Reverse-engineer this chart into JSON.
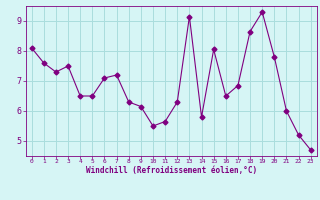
{
  "x": [
    0,
    1,
    2,
    3,
    4,
    5,
    6,
    7,
    8,
    9,
    10,
    11,
    12,
    13,
    14,
    15,
    16,
    17,
    18,
    19,
    20,
    21,
    22,
    23
  ],
  "y": [
    8.1,
    7.6,
    7.3,
    7.5,
    6.5,
    6.5,
    7.1,
    7.2,
    6.3,
    6.15,
    5.5,
    5.65,
    6.3,
    9.15,
    5.8,
    8.05,
    6.5,
    6.85,
    8.65,
    9.3,
    7.8,
    6.0,
    5.2,
    4.7
  ],
  "line_color": "#800080",
  "marker": "D",
  "marker_size": 2.5,
  "bg_color": "#d6f5f5",
  "grid_color": "#aadddd",
  "xlabel": "Windchill (Refroidissement éolien,°C)",
  "xlabel_color": "#800080",
  "tick_color": "#800080",
  "ylim": [
    4.5,
    9.5
  ],
  "xlim": [
    -0.5,
    23.5
  ],
  "yticks": [
    5,
    6,
    7,
    8,
    9
  ],
  "xticks": [
    0,
    1,
    2,
    3,
    4,
    5,
    6,
    7,
    8,
    9,
    10,
    11,
    12,
    13,
    14,
    15,
    16,
    17,
    18,
    19,
    20,
    21,
    22,
    23
  ]
}
